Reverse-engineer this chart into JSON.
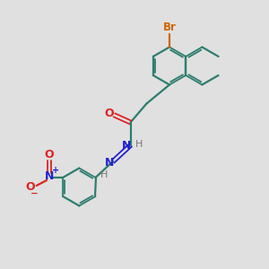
{
  "bg_color": "#e0e0e0",
  "bond_color": "#2d7d6e",
  "br_color": "#cc6600",
  "o_color": "#dd2222",
  "n_color": "#2222cc",
  "h_color": "#777777",
  "figsize": [
    3.0,
    3.0
  ],
  "dpi": 100,
  "xlim": [
    0,
    10
  ],
  "ylim": [
    0,
    10
  ]
}
